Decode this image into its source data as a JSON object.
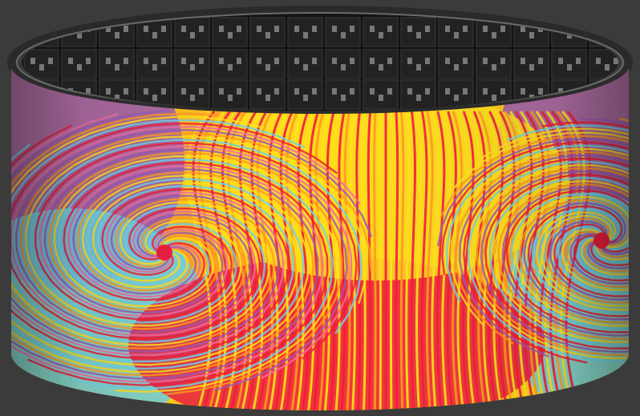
{
  "scene": {
    "subject": "cylindrical-led-display",
    "colors": {
      "background": "#3b3b3b",
      "frame": "#1a1a1a",
      "frame_rim": "#6a6a6a",
      "module": "#222222",
      "module_chip": "#777777",
      "swirl_purple": "#9b59b6",
      "swirl_cyan": "#6fd3e6",
      "swirl_yellow": "#ffe11a",
      "swirl_orange": "#ff9a1f",
      "swirl_red": "#ee1c3c",
      "swirl_pink": "#f06aa8"
    }
  }
}
